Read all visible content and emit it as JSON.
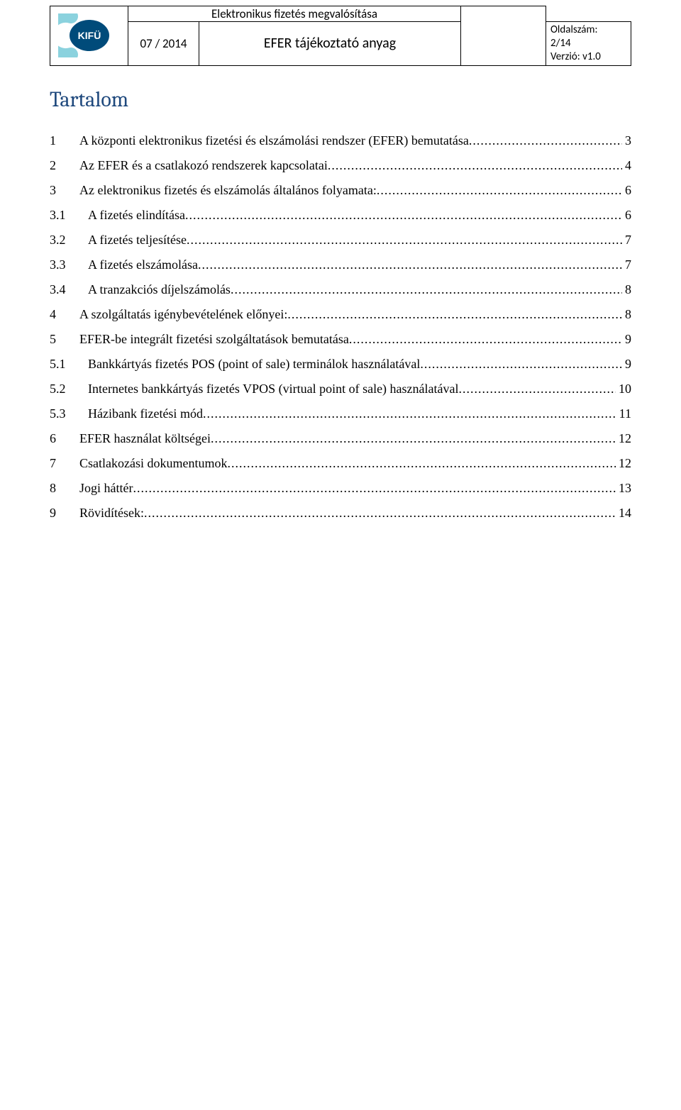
{
  "header": {
    "logo_text": "KIFÜ",
    "date": "07 / 2014",
    "title_top": "Elektronikus fizetés megvalósítása",
    "title_bottom": "EFER tájékoztató anyag",
    "meta_label_pages": "Oldalszám:",
    "meta_pages": "2/14",
    "meta_version": "Verzió: v1.0"
  },
  "logo": {
    "outer_fill": "#8bd2de",
    "inner_fill": "#004b7a",
    "text_color": "#ffffff"
  },
  "toc": {
    "title": "Tartalom",
    "title_color": "#1f497d",
    "entries": [
      {
        "num": "1",
        "label": "A központi elektronikus fizetési és elszámolási rendszer (EFER) bemutatása",
        "page": "3",
        "level": 1
      },
      {
        "num": "2",
        "label": "Az EFER és a csatlakozó rendszerek kapcsolatai",
        "page": "4",
        "level": 1
      },
      {
        "num": "3",
        "label": "Az elektronikus fizetés és elszámolás általános folyamata:",
        "page": "6",
        "level": 1
      },
      {
        "num": "3.1",
        "label": "A fizetés elindítása",
        "page": "6",
        "level": 2
      },
      {
        "num": "3.2",
        "label": "A fizetés teljesítése",
        "page": "7",
        "level": 2
      },
      {
        "num": "3.3",
        "label": "A fizetés elszámolása",
        "page": "7",
        "level": 2
      },
      {
        "num": "3.4",
        "label": "A tranzakciós díjelszámolás",
        "page": "8",
        "level": 2
      },
      {
        "num": "4",
        "label": "A szolgáltatás igénybevételének előnyei:",
        "page": "8",
        "level": 1
      },
      {
        "num": "5",
        "label": "EFER-be integrált fizetési szolgáltatások bemutatása",
        "page": "9",
        "level": 1
      },
      {
        "num": "5.1",
        "label": "Bankkártyás fizetés POS (point of sale) terminálok használatával",
        "page": "9",
        "level": 2
      },
      {
        "num": "5.2",
        "label": "Internetes bankkártyás fizetés VPOS (virtual point of sale) használatával",
        "page": "10",
        "level": 2
      },
      {
        "num": "5.3",
        "label": "Házibank fizetési mód",
        "page": "11",
        "level": 2
      },
      {
        "num": "6",
        "label": "EFER használat költségei",
        "page": "12",
        "level": 1
      },
      {
        "num": "7",
        "label": "Csatlakozási dokumentumok",
        "page": "12",
        "level": 1
      },
      {
        "num": "8",
        "label": "Jogi háttér",
        "page": "13",
        "level": 1
      },
      {
        "num": "9",
        "label": "Rövidítések:",
        "page": "14",
        "level": 1
      }
    ]
  }
}
